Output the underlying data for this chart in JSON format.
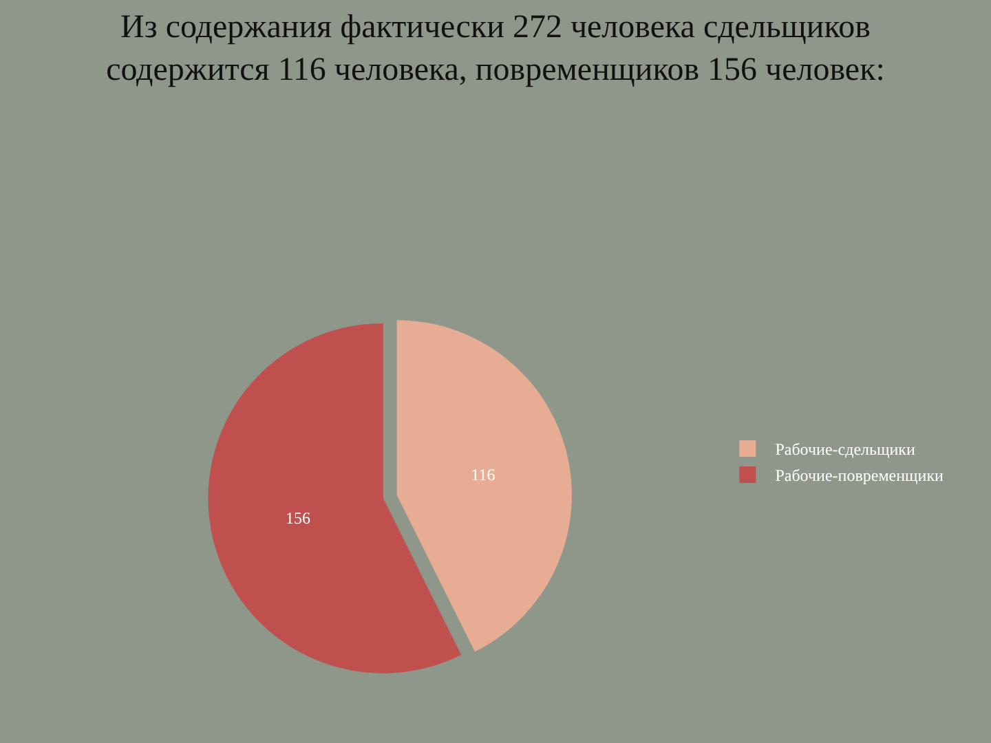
{
  "chart_data": {
    "type": "pie",
    "title": "Из содержания фактически 272 человека сдельщиков\nсодержится 116 человека, повременщиков 156 человек:",
    "categories": [
      "Рабочие-сдельщики",
      "Рабочие-повременщики"
    ],
    "values": [
      116,
      156
    ],
    "colors": [
      "#e6ad94",
      "#c0504d"
    ],
    "data_labels": true,
    "legend": "right"
  }
}
